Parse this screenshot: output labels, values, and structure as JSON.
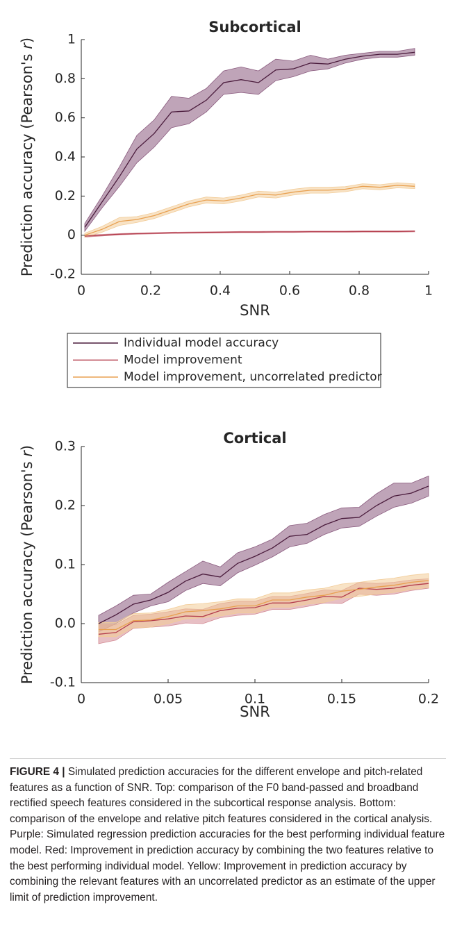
{
  "chart_data": [
    {
      "type": "line",
      "title": "Subcortical",
      "xlabel": "SNR",
      "ylabel": [
        "Prediction accuracy (Pearson's ",
        "r",
        ")"
      ],
      "xlim": [
        0,
        1
      ],
      "ylim": [
        -0.2,
        1
      ],
      "xticks": [
        0,
        0.2,
        0.4,
        0.6,
        0.8,
        1
      ],
      "yticks": [
        -0.2,
        0,
        0.2,
        0.4,
        0.6,
        0.8,
        1
      ],
      "legend": "below",
      "x": [
        0.01,
        0.06,
        0.11,
        0.16,
        0.21,
        0.26,
        0.31,
        0.36,
        0.41,
        0.46,
        0.51,
        0.56,
        0.61,
        0.66,
        0.71,
        0.76,
        0.81,
        0.86,
        0.91,
        0.96
      ],
      "series": [
        {
          "name": "Individual model accuracy",
          "color": "#4a1b3c",
          "band_color": "#8a5a7e",
          "values": [
            0.04,
            0.17,
            0.3,
            0.44,
            0.52,
            0.63,
            0.635,
            0.69,
            0.78,
            0.795,
            0.78,
            0.845,
            0.85,
            0.88,
            0.875,
            0.9,
            0.915,
            0.925,
            0.925,
            0.935
          ],
          "lower": [
            0.02,
            0.14,
            0.25,
            0.37,
            0.45,
            0.55,
            0.57,
            0.63,
            0.72,
            0.73,
            0.72,
            0.79,
            0.81,
            0.84,
            0.85,
            0.88,
            0.9,
            0.91,
            0.91,
            0.92
          ],
          "upper": [
            0.06,
            0.2,
            0.35,
            0.51,
            0.59,
            0.71,
            0.7,
            0.75,
            0.84,
            0.86,
            0.84,
            0.9,
            0.89,
            0.92,
            0.9,
            0.92,
            0.93,
            0.94,
            0.94,
            0.955
          ]
        },
        {
          "name": "Model improvement",
          "color": "#b43c4c",
          "band_color": "#d38a94",
          "values": [
            -0.005,
            0.0,
            0.005,
            0.008,
            0.01,
            0.012,
            0.013,
            0.014,
            0.015,
            0.016,
            0.016,
            0.017,
            0.017,
            0.018,
            0.018,
            0.018,
            0.019,
            0.019,
            0.019,
            0.02
          ],
          "lower": [
            -0.01,
            -0.004,
            0.002,
            0.005,
            0.007,
            0.009,
            0.01,
            0.011,
            0.012,
            0.013,
            0.013,
            0.014,
            0.014,
            0.015,
            0.015,
            0.015,
            0.016,
            0.016,
            0.016,
            0.017
          ],
          "upper": [
            0.0,
            0.004,
            0.008,
            0.011,
            0.013,
            0.015,
            0.016,
            0.017,
            0.018,
            0.019,
            0.019,
            0.02,
            0.02,
            0.021,
            0.021,
            0.021,
            0.022,
            0.022,
            0.022,
            0.023
          ]
        },
        {
          "name": "Model improvement, uncorrelated predictor",
          "color": "#e8a050",
          "band_color": "#f2cc98",
          "values": [
            0.0,
            0.03,
            0.07,
            0.08,
            0.1,
            0.13,
            0.16,
            0.18,
            0.175,
            0.19,
            0.21,
            0.205,
            0.22,
            0.23,
            0.23,
            0.235,
            0.25,
            0.245,
            0.255,
            0.25
          ],
          "lower": [
            -0.01,
            0.015,
            0.05,
            0.065,
            0.085,
            0.115,
            0.145,
            0.165,
            0.16,
            0.175,
            0.195,
            0.19,
            0.205,
            0.215,
            0.215,
            0.222,
            0.237,
            0.232,
            0.242,
            0.238
          ],
          "upper": [
            0.01,
            0.045,
            0.09,
            0.095,
            0.115,
            0.145,
            0.175,
            0.195,
            0.19,
            0.205,
            0.225,
            0.22,
            0.235,
            0.245,
            0.245,
            0.248,
            0.263,
            0.258,
            0.268,
            0.262
          ]
        }
      ]
    },
    {
      "type": "line",
      "title": "Cortical",
      "xlabel": "SNR",
      "ylabel": [
        "Prediction accuracy (Pearson's ",
        "r",
        ")"
      ],
      "xlim": [
        0,
        0.2
      ],
      "ylim": [
        -0.1,
        0.3
      ],
      "xticks": [
        0,
        0.05,
        0.1,
        0.15,
        0.2
      ],
      "yticks": [
        -0.1,
        {
          "value": 0,
          "label": "0.0"
        },
        0.1,
        0.2,
        0.3
      ],
      "x": [
        0.01,
        0.02,
        0.03,
        0.04,
        0.05,
        0.06,
        0.07,
        0.08,
        0.09,
        0.1,
        0.11,
        0.12,
        0.13,
        0.14,
        0.15,
        0.16,
        0.17,
        0.18,
        0.19,
        0.2
      ],
      "series": [
        {
          "color": "#4a1b3c",
          "band_color": "#8a5a7e",
          "values": [
            0.0,
            0.015,
            0.033,
            0.04,
            0.053,
            0.072,
            0.084,
            0.079,
            0.102,
            0.114,
            0.128,
            0.148,
            0.151,
            0.167,
            0.178,
            0.18,
            0.2,
            0.216,
            0.221,
            0.233
          ],
          "lower": [
            -0.014,
            0.0,
            0.018,
            0.03,
            0.037,
            0.056,
            0.068,
            0.064,
            0.086,
            0.099,
            0.113,
            0.13,
            0.136,
            0.151,
            0.162,
            0.165,
            0.182,
            0.197,
            0.204,
            0.216
          ],
          "upper": [
            0.014,
            0.03,
            0.048,
            0.05,
            0.07,
            0.088,
            0.106,
            0.096,
            0.12,
            0.13,
            0.143,
            0.166,
            0.17,
            0.185,
            0.196,
            0.197,
            0.22,
            0.238,
            0.238,
            0.25
          ]
        },
        {
          "color": "#b43c4c",
          "band_color": "#d38a94",
          "values": [
            -0.018,
            -0.015,
            0.003,
            0.005,
            0.008,
            0.013,
            0.012,
            0.022,
            0.026,
            0.027,
            0.035,
            0.035,
            0.04,
            0.046,
            0.045,
            0.06,
            0.058,
            0.06,
            0.065,
            0.068
          ],
          "lower": [
            -0.034,
            -0.028,
            -0.008,
            -0.006,
            -0.004,
            0.001,
            0.0,
            0.01,
            0.014,
            0.016,
            0.024,
            0.024,
            0.029,
            0.035,
            0.034,
            0.05,
            0.048,
            0.05,
            0.056,
            0.06
          ],
          "upper": [
            -0.002,
            -0.002,
            0.014,
            0.016,
            0.02,
            0.025,
            0.024,
            0.034,
            0.038,
            0.038,
            0.046,
            0.046,
            0.051,
            0.057,
            0.056,
            0.07,
            0.068,
            0.07,
            0.074,
            0.076
          ]
        },
        {
          "color": "#e8a050",
          "band_color": "#f2cc98",
          "values": [
            -0.01,
            -0.01,
            0.005,
            0.006,
            0.012,
            0.02,
            0.022,
            0.025,
            0.03,
            0.03,
            0.04,
            0.04,
            0.045,
            0.048,
            0.055,
            0.058,
            0.062,
            0.065,
            0.07,
            0.073
          ],
          "lower": [
            -0.022,
            -0.022,
            -0.007,
            -0.006,
            0.0,
            0.008,
            0.01,
            0.013,
            0.018,
            0.018,
            0.028,
            0.028,
            0.033,
            0.036,
            0.043,
            0.046,
            0.05,
            0.053,
            0.058,
            0.061
          ],
          "upper": [
            0.002,
            0.002,
            0.017,
            0.018,
            0.024,
            0.032,
            0.034,
            0.037,
            0.042,
            0.042,
            0.052,
            0.052,
            0.057,
            0.06,
            0.067,
            0.07,
            0.074,
            0.077,
            0.082,
            0.085
          ]
        }
      ]
    }
  ],
  "caption": {
    "label": "FIGURE 4 |",
    "text": "Simulated prediction accuracies for the different envelope and pitch-related features as a function of SNR. Top: comparison of the F0 band-passed and broadband rectified speech features considered in the subcortical response analysis. Bottom: comparison of the envelope and relative pitch features considered in the cortical analysis. Purple: Simulated regression prediction accuracies for the best performing individual feature model. Red: Improvement in prediction accuracy by combining the two features relative to the best performing individual model. Yellow: Improvement in prediction accuracy by combining the relevant features with an uncorrelated predictor as an estimate of the upper limit of prediction improvement."
  }
}
